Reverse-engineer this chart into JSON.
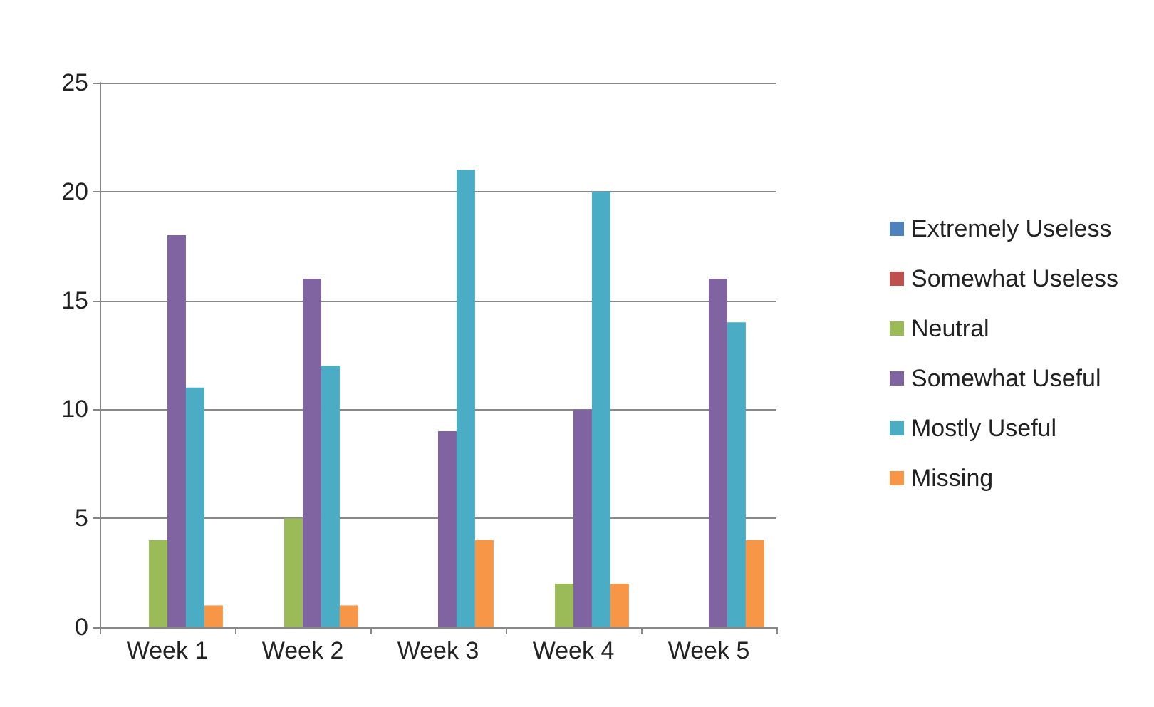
{
  "chart_data": {
    "type": "bar",
    "categories": [
      "Week 1",
      "Week 2",
      "Week 3",
      "Week 4",
      "Week 5"
    ],
    "series": [
      {
        "name": "Extremely Useless",
        "color": "#4f81bd",
        "values": [
          0,
          0,
          0,
          0,
          0
        ]
      },
      {
        "name": "Somewhat Useless",
        "color": "#c0504d",
        "values": [
          0,
          0,
          0,
          0,
          0
        ]
      },
      {
        "name": "Neutral",
        "color": "#9bbb59",
        "values": [
          4,
          5,
          0,
          2,
          0
        ]
      },
      {
        "name": "Somewhat Useful",
        "color": "#8064a2",
        "values": [
          18,
          16,
          9,
          10,
          16
        ]
      },
      {
        "name": "Mostly Useful",
        "color": "#4bacc6",
        "values": [
          11,
          12,
          21,
          20,
          14
        ]
      },
      {
        "name": "Missing",
        "color": "#f79646",
        "values": [
          1,
          1,
          4,
          2,
          4
        ]
      }
    ],
    "ylim": [
      0,
      25
    ],
    "yticks": [
      0,
      5,
      10,
      15,
      20,
      25
    ],
    "grid": "y",
    "legend": "right"
  }
}
